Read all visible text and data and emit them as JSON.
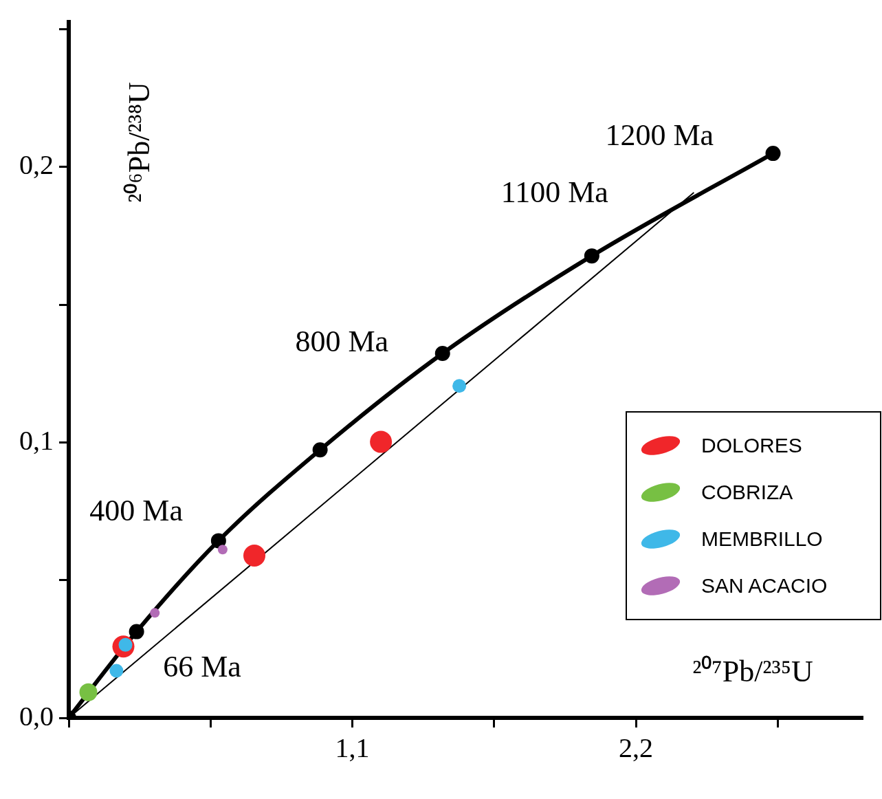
{
  "chart_data": {
    "type": "scatter",
    "xlabel": "²⁰⁷Pb/²³⁵U",
    "ylabel": "²⁰⁶Pb/²³⁸U",
    "xlim": [
      0,
      3.08
    ],
    "ylim": [
      0,
      0.2526
    ],
    "xticks": [
      {
        "value": 0,
        "label": null
      },
      {
        "value": 0.55,
        "label": null
      },
      {
        "value": 1.1,
        "label": "1,1"
      },
      {
        "value": 1.65,
        "label": null
      },
      {
        "value": 2.2,
        "label": "2,2"
      },
      {
        "value": 2.75,
        "label": null
      }
    ],
    "yticks": [
      {
        "value": 0,
        "label": "0,0"
      },
      {
        "value": 0.05,
        "label": null
      },
      {
        "value": 0.1,
        "label": "0,1"
      },
      {
        "value": 0.15,
        "label": null
      },
      {
        "value": 0.2,
        "label": "0,2"
      },
      {
        "value": 0.25,
        "label": null
      }
    ],
    "grid": false,
    "legend": "right",
    "marker": "circle",
    "series": [
      {
        "type": "line",
        "color": "#000000",
        "marker": "circle",
        "x": [
          0,
          0.263,
          0.581,
          0.975,
          1.45,
          2.029,
          2.732
        ],
        "values": [
          0,
          0.0313,
          0.0643,
          0.0973,
          0.1323,
          0.1677,
          0.2049
        ]
      },
      {
        "type": "line",
        "color": "#000000",
        "marker": "none",
        "x": [
          0,
          2.425
        ],
        "values": [
          0,
          0.1907
        ]
      },
      {
        "name": "DOLORES",
        "color": "#f0262a",
        "x": [
          0.212,
          0.72,
          1.211
        ],
        "values": [
          0.0259,
          0.0589,
          0.1002
        ]
      },
      {
        "name": "COBRIZA",
        "color": "#77c043",
        "x": [
          0.076
        ],
        "values": [
          0.0093
        ]
      },
      {
        "name": "MEMBRILLO",
        "color": "#3fb8e8",
        "x": [
          0.22,
          0.185,
          1.515
        ],
        "values": [
          0.0265,
          0.0171,
          0.1205
        ]
      },
      {
        "name": "SAN ACACIO",
        "color": "#b26cb6",
        "x": [
          0.334,
          0.597
        ],
        "values": [
          0.0381,
          0.0611
        ]
      }
    ],
    "annotations": [
      "1200 Ma",
      "1100 Ma",
      "800 Ma",
      "400 Ma",
      "66 Ma"
    ]
  }
}
